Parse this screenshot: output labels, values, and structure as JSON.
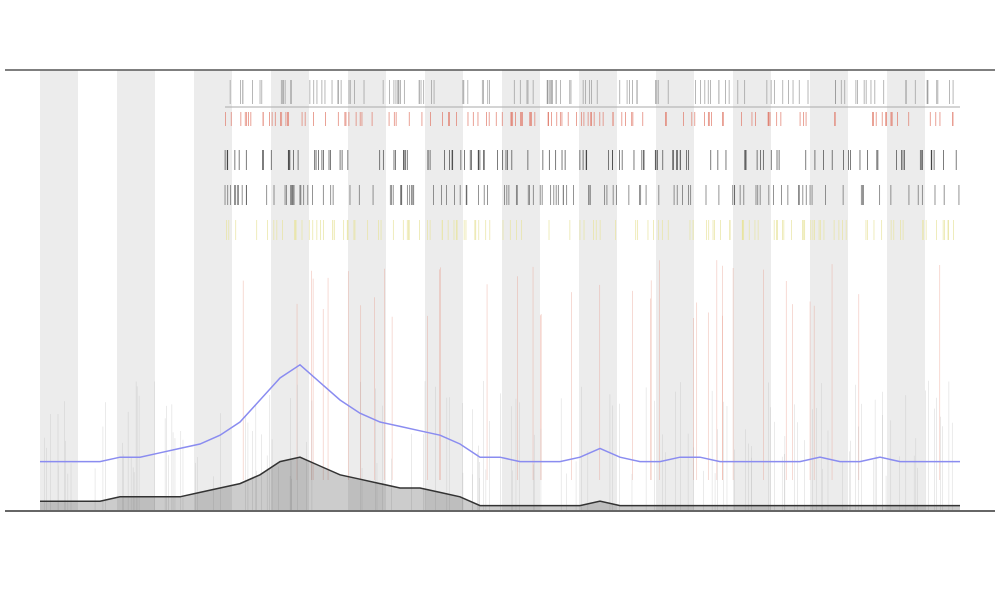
{
  "chart_data": {
    "type": "line",
    "series": [
      {
        "color": "#8a8cf0",
        "values": [
          11,
          11,
          11,
          11,
          12,
          12,
          13,
          14,
          15,
          17,
          20,
          25,
          30,
          33,
          29,
          25,
          22,
          20,
          19,
          18,
          17,
          15,
          12,
          12,
          11,
          11,
          11,
          12,
          14,
          12,
          11,
          11,
          12,
          12,
          11,
          11,
          11,
          11,
          11,
          12,
          11,
          11,
          12,
          11,
          11,
          11,
          11
        ]
      },
      {
        "color": "#333333",
        "values": [
          2,
          2,
          2,
          2,
          3,
          3,
          3,
          3,
          4,
          5,
          6,
          8,
          11,
          12,
          10,
          8,
          7,
          6,
          5,
          5,
          4,
          3,
          1,
          1,
          1,
          1,
          1,
          1,
          2,
          1,
          1,
          1,
          1,
          1,
          1,
          1,
          1,
          1,
          1,
          1,
          1,
          1,
          1,
          1,
          1,
          1,
          1
        ]
      }
    ],
    "ylim": [
      0,
      100
    ]
  }
}
